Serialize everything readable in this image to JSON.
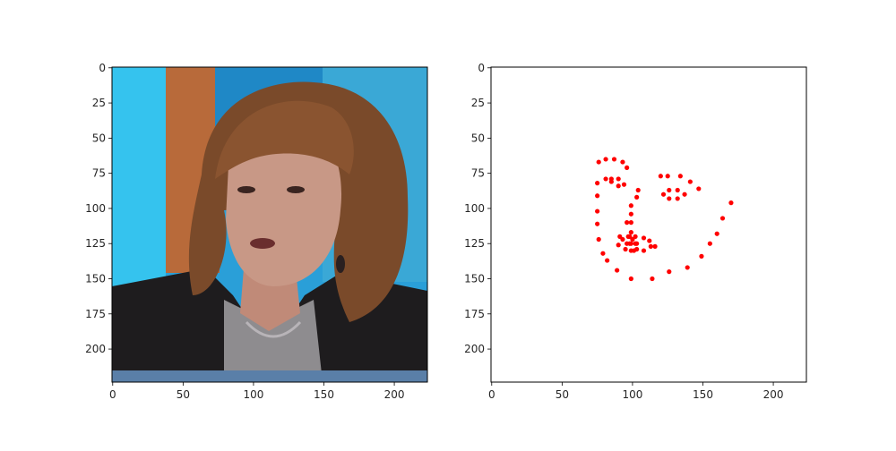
{
  "colors": {
    "marker": "#ff0000",
    "axis": "#000000",
    "background": "#ffffff",
    "photo_bg_cyan": "#2fb4e6",
    "photo_hair": "#7a4a2a",
    "photo_jacket": "#1e1c1e",
    "photo_shirt": "#8c8c8e",
    "photo_skin": "#c89886"
  },
  "chart_data": [
    {
      "type": "image",
      "title": "",
      "xlabel": "",
      "ylabel": "",
      "image_content": "photo of a woman with shoulder-length brown hair in a dark jacket, blue studio background",
      "xlim": [
        -0.5,
        223.5
      ],
      "ylim": [
        223.5,
        -0.5
      ],
      "xticks": [
        0,
        50,
        100,
        150,
        200
      ],
      "yticks": [
        0,
        25,
        50,
        75,
        100,
        125,
        150,
        175,
        200
      ],
      "xtick_labels": [
        "0",
        "50",
        "100",
        "150",
        "200"
      ],
      "ytick_labels": [
        "0",
        "25",
        "50",
        "75",
        "100",
        "125",
        "150",
        "175",
        "200"
      ],
      "grid": false
    },
    {
      "type": "scatter",
      "title": "",
      "xlabel": "",
      "ylabel": "",
      "xlim": [
        -0.5,
        223.5
      ],
      "ylim": [
        223.5,
        -0.5
      ],
      "xticks": [
        0,
        50,
        100,
        150,
        200
      ],
      "yticks": [
        0,
        25,
        50,
        75,
        100,
        125,
        150,
        175,
        200
      ],
      "xtick_labels": [
        "0",
        "50",
        "100",
        "150",
        "200"
      ],
      "ytick_labels": [
        "0",
        "25",
        "50",
        "75",
        "100",
        "125",
        "150",
        "175",
        "200"
      ],
      "grid": false,
      "series": [
        {
          "color": "#ff0000",
          "points": [
            [
              75,
              82
            ],
            [
              75,
              91
            ],
            [
              75,
              102
            ],
            [
              75,
              111
            ],
            [
              76,
              122
            ],
            [
              79,
              132
            ],
            [
              82,
              137
            ],
            [
              89,
              144
            ],
            [
              99,
              150
            ],
            [
              114,
              150
            ],
            [
              126,
              145
            ],
            [
              139,
              142
            ],
            [
              149,
              134
            ],
            [
              155,
              125
            ],
            [
              160,
              118
            ],
            [
              164,
              107
            ],
            [
              170,
              96
            ],
            [
              76,
              67
            ],
            [
              81,
              65
            ],
            [
              87,
              65
            ],
            [
              93,
              67
            ],
            [
              96,
              71
            ],
            [
              120,
              77
            ],
            [
              125,
              77
            ],
            [
              134,
              77
            ],
            [
              141,
              81
            ],
            [
              147,
              86
            ],
            [
              99,
              98
            ],
            [
              99,
              104
            ],
            [
              99,
              110
            ],
            [
              99,
              117
            ],
            [
              93,
              122
            ],
            [
              96,
              125
            ],
            [
              99,
              125
            ],
            [
              103,
              125
            ],
            [
              108,
              121
            ],
            [
              81,
              79
            ],
            [
              85,
              79
            ],
            [
              90,
              79
            ],
            [
              94,
              83
            ],
            [
              90,
              84
            ],
            [
              85,
              81
            ],
            [
              122,
              90
            ],
            [
              126,
              87
            ],
            [
              132,
              87
            ],
            [
              137,
              90
            ],
            [
              132,
              93
            ],
            [
              126,
              93
            ],
            [
              91,
              120
            ],
            [
              96,
              110
            ],
            [
              98,
              120
            ],
            [
              100,
              122
            ],
            [
              102,
              120
            ],
            [
              112,
              123
            ],
            [
              116,
              127
            ],
            [
              108,
              130
            ],
            [
              101,
              130
            ],
            [
              95,
              129
            ],
            [
              90,
              126
            ],
            [
              97,
              120
            ],
            [
              98,
              125
            ],
            [
              102,
              125
            ],
            [
              113,
              127
            ],
            [
              103,
              129
            ],
            [
              99,
              130
            ],
            [
              103,
              92
            ],
            [
              104,
              87
            ]
          ]
        }
      ]
    }
  ]
}
